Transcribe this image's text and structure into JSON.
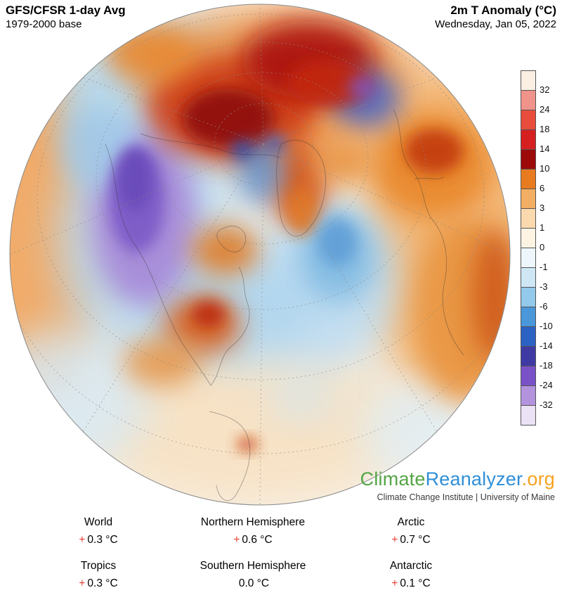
{
  "header": {
    "left_title": "GFS/CFSR 1-day Avg",
    "left_subtitle": "1979-2000 base",
    "right_title": "2m T Anomaly (°C)",
    "right_subtitle": "Wednesday, Jan 05, 2022"
  },
  "colorbar": {
    "ticks": [
      "32",
      "24",
      "18",
      "14",
      "10",
      "6",
      "3",
      "1",
      "0",
      "-1",
      "-3",
      "-6",
      "-10",
      "-14",
      "-18",
      "-24",
      "-32"
    ],
    "segments": [
      "#fbeee2",
      "#f0938a",
      "#e84c3b",
      "#d62020",
      "#9c0a0a",
      "#e87b20",
      "#f2ae62",
      "#fbd9ae",
      "#fdf3e3",
      "#eef6fb",
      "#cfe7f5",
      "#93c9ea",
      "#4a97d9",
      "#2b62c4",
      "#3f3aa3",
      "#7a52c7",
      "#b393dd",
      "#ece2f6"
    ]
  },
  "branding": {
    "climate": "Climate",
    "reanalyzer": "Reanalyzer",
    "org": ".org",
    "credit": "Climate Change Institute | University of Maine",
    "colors": {
      "climate": "#55a546",
      "reanalyzer": "#2e8fd8",
      "org": "#f6a21e"
    }
  },
  "stats_plus_color": "#e63c2f",
  "stats": [
    {
      "label": "World",
      "sign": "+",
      "value": "0.3 °C"
    },
    {
      "label": "Northern Hemisphere",
      "sign": "+",
      "value": "0.6 °C"
    },
    {
      "label": "Arctic",
      "sign": "+",
      "value": "0.7 °C"
    },
    {
      "label": "Tropics",
      "sign": "+",
      "value": "0.3 °C"
    },
    {
      "label": "Southern Hemisphere",
      "sign": "",
      "value": "0.0 °C"
    },
    {
      "label": "Antarctic",
      "sign": "+",
      "value": "0.1 °C"
    }
  ]
}
